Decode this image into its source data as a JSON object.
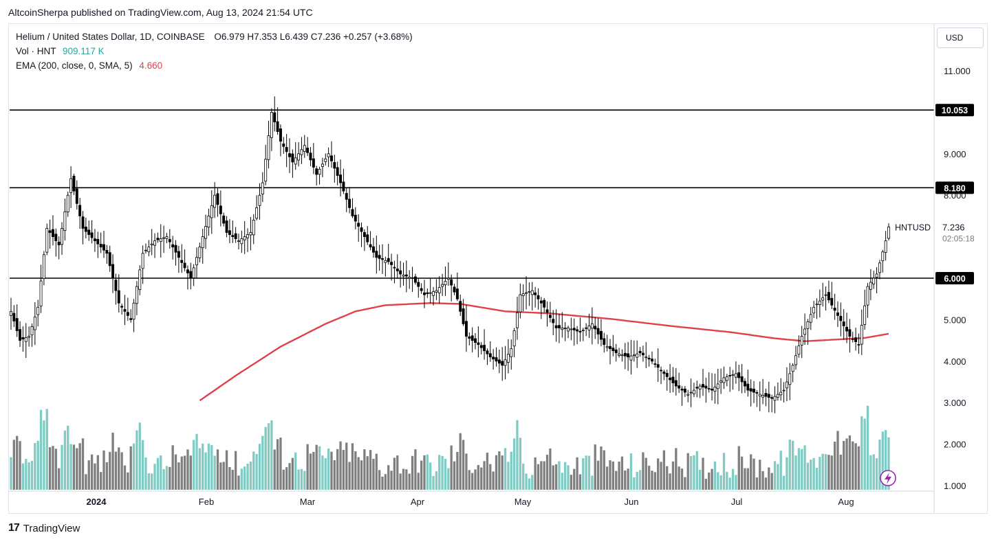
{
  "header": {
    "published_line": "AltcoinSherpa published on TradingView.com, Aug 13, 2024 21:54 UTC"
  },
  "legend": {
    "symbol_line": "Helium / United States Dollar, 1D, COINBASE",
    "ohlc": "O6.979  H7.353  L6.439  C7.236  +0.257 (+3.68%)",
    "volume_label": "Vol · HNT",
    "volume_value": "909.117 K",
    "ema_label": "EMA (200, close, 0, SMA, 5)",
    "ema_value": "4.660"
  },
  "price_axis": {
    "currency_button": "USD",
    "ticks": [
      "11.000",
      "9.000",
      "8.000",
      "5.000",
      "4.000",
      "3.000",
      "2.000",
      "1.000"
    ],
    "last_price_symbol": "HNTUSD",
    "last_price": "7.236",
    "countdown": "02:05:18"
  },
  "time_axis": {
    "labels": [
      "2024",
      "Feb",
      "Mar",
      "Apr",
      "May",
      "Jun",
      "Jul",
      "Aug"
    ]
  },
  "footer": {
    "brand": "TradingView"
  },
  "colors": {
    "up": "#ffffff",
    "down": "#000000",
    "ema": "#e0404a",
    "vol_up": "#80cbc4",
    "vol_down": "#7f7f7f",
    "level_line": "#000000",
    "accent_purple": "#9c27b0"
  },
  "chart_data": {
    "type": "candlestick",
    "symbol": "HNTUSD",
    "interval": "1D",
    "ylim": [
      1.0,
      11.4
    ],
    "horizontal_levels": [
      {
        "value": 10.053,
        "label": "10.053"
      },
      {
        "value": 8.18,
        "label": "8.180"
      },
      {
        "value": 6.0,
        "label": "6.000"
      }
    ],
    "close_path": [
      [
        0,
        5.2
      ],
      [
        3,
        4.5
      ],
      [
        6,
        4.6
      ],
      [
        9,
        5.3
      ],
      [
        12,
        7.2
      ],
      [
        16,
        6.8
      ],
      [
        20,
        8.4
      ],
      [
        24,
        7.2
      ],
      [
        28,
        6.9
      ],
      [
        32,
        6.6
      ],
      [
        36,
        5.4
      ],
      [
        40,
        5.0
      ],
      [
        44,
        6.6
      ],
      [
        48,
        6.9
      ],
      [
        52,
        7.0
      ],
      [
        56,
        6.5
      ],
      [
        60,
        6.0
      ],
      [
        64,
        7.0
      ],
      [
        68,
        8.0
      ],
      [
        72,
        7.1
      ],
      [
        76,
        6.9
      ],
      [
        80,
        7.1
      ],
      [
        84,
        8.3
      ],
      [
        87,
        10.0
      ],
      [
        90,
        9.3
      ],
      [
        94,
        8.8
      ],
      [
        98,
        9.2
      ],
      [
        102,
        8.5
      ],
      [
        106,
        9.0
      ],
      [
        110,
        8.3
      ],
      [
        114,
        7.5
      ],
      [
        118,
        7.0
      ],
      [
        122,
        6.5
      ],
      [
        126,
        6.4
      ],
      [
        130,
        6.1
      ],
      [
        134,
        6.0
      ],
      [
        138,
        5.6
      ],
      [
        142,
        5.7
      ],
      [
        146,
        6.0
      ],
      [
        149,
        5.5
      ],
      [
        152,
        4.6
      ],
      [
        156,
        4.4
      ],
      [
        160,
        4.1
      ],
      [
        164,
        3.9
      ],
      [
        167,
        4.3
      ],
      [
        170,
        5.6
      ],
      [
        174,
        5.7
      ],
      [
        178,
        5.3
      ],
      [
        182,
        4.8
      ],
      [
        186,
        4.8
      ],
      [
        190,
        4.7
      ],
      [
        194,
        4.9
      ],
      [
        198,
        4.4
      ],
      [
        202,
        4.2
      ],
      [
        206,
        4.1
      ],
      [
        210,
        4.2
      ],
      [
        214,
        4.0
      ],
      [
        218,
        3.7
      ],
      [
        222,
        3.4
      ],
      [
        226,
        3.2
      ],
      [
        230,
        3.4
      ],
      [
        234,
        3.3
      ],
      [
        238,
        3.6
      ],
      [
        242,
        3.7
      ],
      [
        246,
        3.3
      ],
      [
        250,
        3.2
      ],
      [
        254,
        3.1
      ],
      [
        258,
        3.3
      ],
      [
        261,
        3.9
      ],
      [
        264,
        4.6
      ],
      [
        268,
        5.3
      ],
      [
        272,
        5.6
      ],
      [
        276,
        5.1
      ],
      [
        280,
        4.6
      ],
      [
        283,
        4.4
      ],
      [
        286,
        5.8
      ],
      [
        289,
        6.1
      ],
      [
        292,
        6.9
      ],
      [
        293,
        7.236
      ]
    ],
    "ema": [
      [
        63,
        3.05
      ],
      [
        75,
        3.65
      ],
      [
        90,
        4.35
      ],
      [
        105,
        4.9
      ],
      [
        115,
        5.2
      ],
      [
        125,
        5.35
      ],
      [
        140,
        5.4
      ],
      [
        150,
        5.38
      ],
      [
        165,
        5.2
      ],
      [
        180,
        5.15
      ],
      [
        200,
        5.02
      ],
      [
        220,
        4.85
      ],
      [
        240,
        4.7
      ],
      [
        255,
        4.55
      ],
      [
        265,
        4.48
      ],
      [
        275,
        4.52
      ],
      [
        285,
        4.56
      ],
      [
        293,
        4.66
      ]
    ],
    "n_bars": 294
  }
}
